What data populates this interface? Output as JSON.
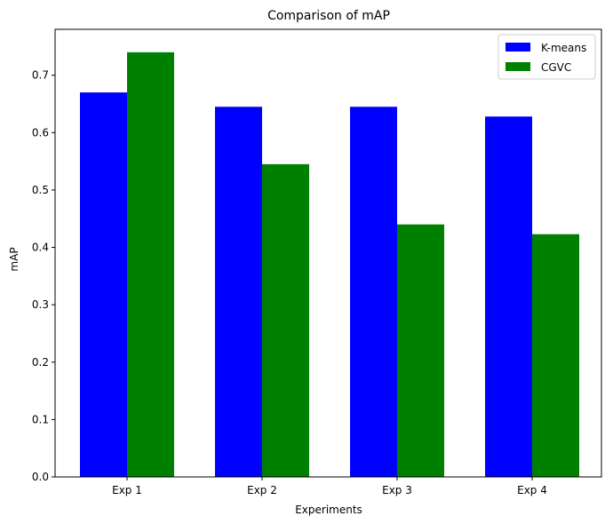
{
  "chart_data": {
    "type": "bar",
    "title": "Comparison of mAP",
    "xlabel": "Experiments",
    "ylabel": "mAP",
    "categories": [
      "Exp 1",
      "Exp 2",
      "Exp 3",
      "Exp 4"
    ],
    "series": [
      {
        "name": "K-means",
        "color": "#0000ff",
        "values": [
          0.67,
          0.645,
          0.645,
          0.628
        ]
      },
      {
        "name": "CGVC",
        "color": "#008000",
        "values": [
          0.74,
          0.545,
          0.44,
          0.423
        ]
      }
    ],
    "ylim": [
      0,
      0.78
    ],
    "yticks": [
      "0.0",
      "0.1",
      "0.2",
      "0.3",
      "0.4",
      "0.5",
      "0.6",
      "0.7"
    ],
    "grid": false,
    "legend_position": "top-right"
  }
}
